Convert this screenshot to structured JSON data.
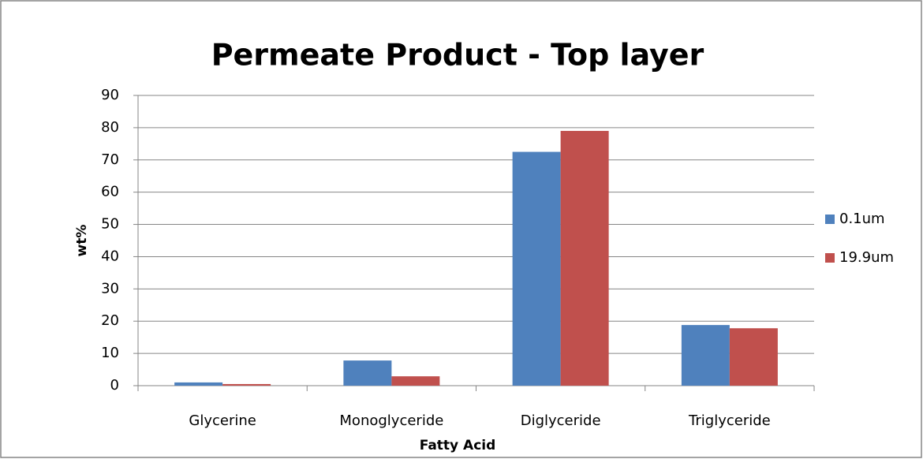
{
  "chart_data": {
    "type": "bar",
    "title": "Permeate Product - Top layer",
    "x_label": "Fatty Acid",
    "y_label": "wt%",
    "categories": [
      "Glycerine",
      "Monoglyceride",
      "Diglyceride",
      "Triglyceride"
    ],
    "series": [
      {
        "name": "0.1um",
        "color": "#4f81bd",
        "values": [
          1.0,
          7.8,
          72.5,
          18.8
        ]
      },
      {
        "name": "19.9um",
        "color": "#c0504d",
        "values": [
          0.5,
          2.9,
          79.0,
          17.8
        ]
      }
    ],
    "ylim": [
      0,
      90
    ],
    "yticks": [
      0,
      10,
      20,
      30,
      40,
      50,
      60,
      70,
      80,
      90
    ],
    "grid": true,
    "legend": "right"
  }
}
